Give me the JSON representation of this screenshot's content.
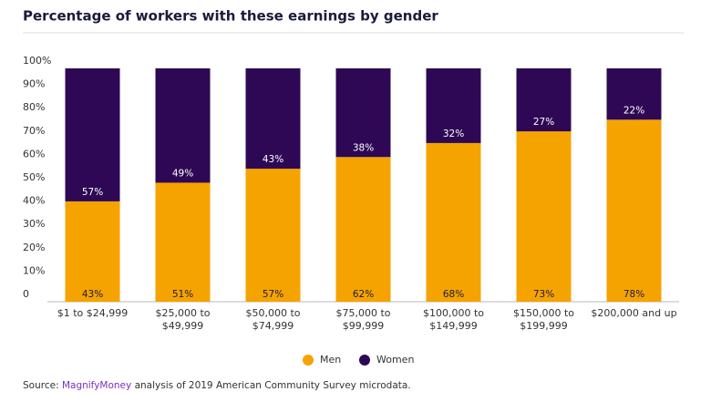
{
  "chart_data": {
    "type": "stacked-bar",
    "title": "Percentage of workers with these earnings by gender",
    "categories": [
      "$1 to $24,999",
      "$25,000 to $49,999",
      "$50,000 to $74,999",
      "$75,000 to $99,999",
      "$100,000 to $149,999",
      "$150,000 to $199,999",
      "$200,000 and up"
    ],
    "series": [
      {
        "name": "Men",
        "color": "#f5a300",
        "values": [
          43,
          51,
          57,
          62,
          68,
          73,
          78
        ],
        "value_labels": [
          "43%",
          "51%",
          "57%",
          "62%",
          "68%",
          "73%",
          "78%"
        ]
      },
      {
        "name": "Women",
        "color": "#2e0854",
        "values": [
          57,
          49,
          43,
          38,
          32,
          27,
          22
        ],
        "value_labels": [
          "57%",
          "49%",
          "43%",
          "38%",
          "32%",
          "27%",
          "22%"
        ]
      }
    ],
    "ylim": [
      0,
      100
    ],
    "yticks": [
      0,
      {
        "value": 10,
        "label": "10%"
      },
      {
        "value": 20,
        "label": "20%"
      },
      {
        "value": 30,
        "label": "30%"
      },
      {
        "value": 40,
        "label": "40%"
      },
      {
        "value": 50,
        "label": "50%"
      },
      {
        "value": 60,
        "label": "60%"
      },
      {
        "value": 70,
        "label": "70%"
      },
      {
        "value": 80,
        "label": "80%"
      },
      {
        "value": 90,
        "label": "90%"
      },
      {
        "value": 100,
        "label": "100%"
      }
    ],
    "legend": "bottom",
    "source": {
      "label": "Source:",
      "link": "MagnifyMoney",
      "text": "analysis of 2019 American Community Survey microdata."
    }
  }
}
